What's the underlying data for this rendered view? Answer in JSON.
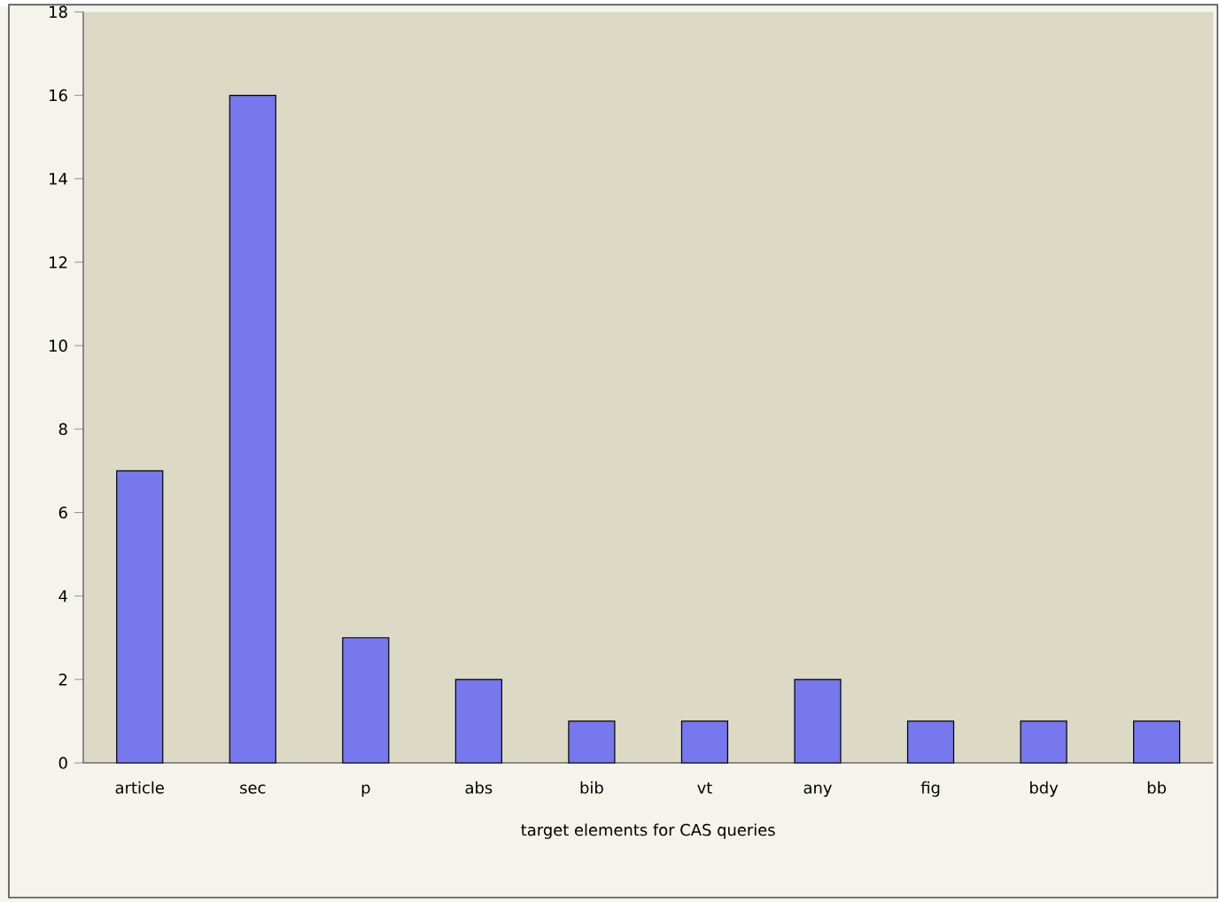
{
  "chart_data": {
    "type": "bar",
    "xlabel": "target elements for CAS queries",
    "categories": [
      "article",
      "sec",
      "p",
      "abs",
      "bib",
      "vt",
      "any",
      "fig",
      "bdy",
      "bb"
    ],
    "values": [
      7,
      16,
      3,
      2,
      1,
      1,
      2,
      1,
      1,
      1
    ],
    "color": "#7777ee",
    "ylim": [
      0,
      18
    ],
    "yticks": [
      0,
      2,
      4,
      6,
      8,
      10,
      12,
      14,
      16,
      18
    ]
  }
}
